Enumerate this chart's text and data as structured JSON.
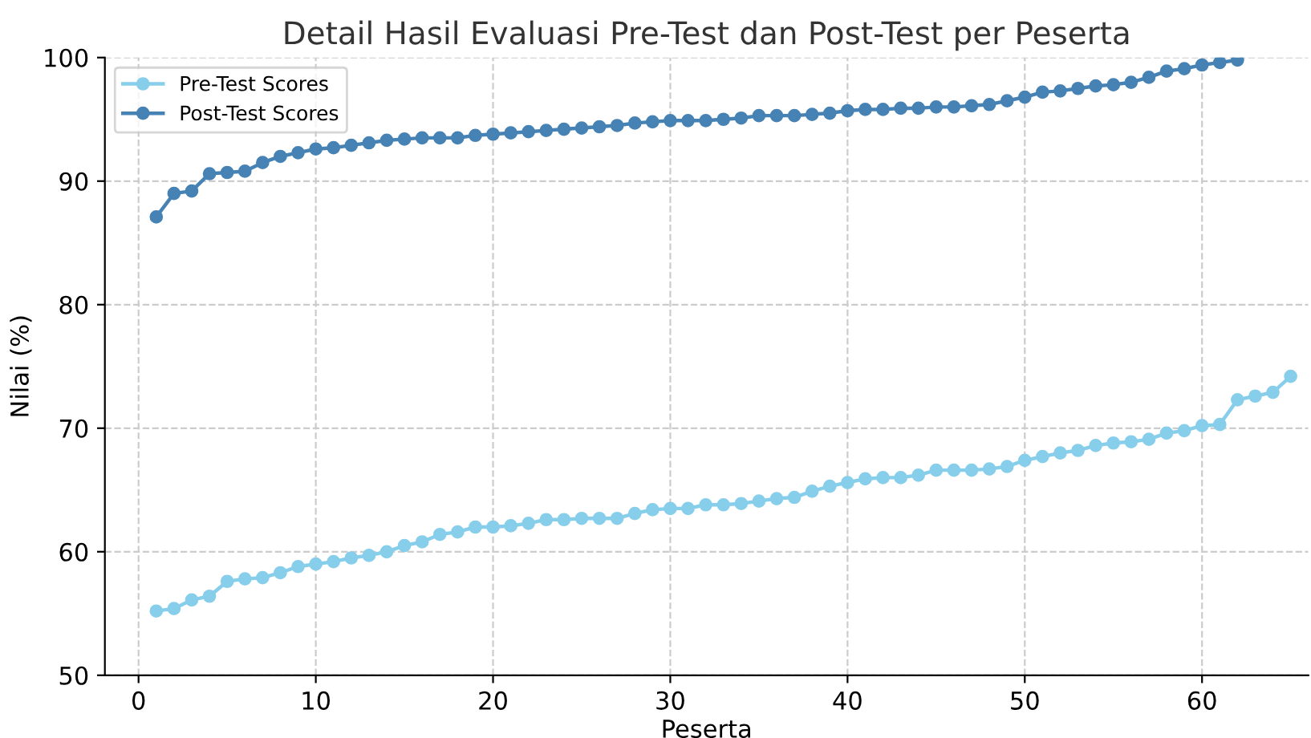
{
  "chart_data": {
    "type": "line",
    "title": "Detail Hasil Evaluasi Pre-Test dan Post-Test per Peserta",
    "xlabel": "Peserta",
    "ylabel": "Nilai (%)",
    "xlim": [
      -1.9,
      66
    ],
    "xticks": [
      0,
      10,
      20,
      30,
      40,
      50,
      60
    ],
    "ylim": [
      50,
      100
    ],
    "yticks": [
      50,
      60,
      70,
      80,
      90,
      100
    ],
    "grid": true,
    "legend": "top left",
    "marker": "circle",
    "line_style": "solid",
    "series": [
      {
        "name": "Pre-Test Scores",
        "color": "#87ceeb",
        "x": [
          1,
          2,
          3,
          4,
          5,
          6,
          7,
          8,
          9,
          10,
          11,
          12,
          13,
          14,
          15,
          16,
          17,
          18,
          19,
          20,
          21,
          22,
          23,
          24,
          25,
          26,
          27,
          28,
          29,
          30,
          31,
          32,
          33,
          34,
          35,
          36,
          37,
          38,
          39,
          40,
          41,
          42,
          43,
          44,
          45,
          46,
          47,
          48,
          49,
          50,
          51,
          52,
          53,
          54,
          55,
          56,
          57,
          58,
          59,
          60,
          61,
          62,
          63,
          64,
          65
        ],
        "values": [
          55.2,
          55.4,
          56.1,
          56.4,
          57.6,
          57.8,
          57.9,
          58.3,
          58.8,
          59.0,
          59.2,
          59.5,
          59.7,
          60.0,
          60.5,
          60.8,
          61.4,
          61.6,
          62.0,
          62.0,
          62.1,
          62.3,
          62.6,
          62.6,
          62.7,
          62.7,
          62.7,
          63.1,
          63.4,
          63.5,
          63.5,
          63.8,
          63.8,
          63.9,
          64.1,
          64.3,
          64.4,
          64.9,
          65.3,
          65.6,
          65.9,
          66.0,
          66.0,
          66.2,
          66.6,
          66.6,
          66.6,
          66.7,
          66.9,
          67.4,
          67.7,
          68.0,
          68.2,
          68.6,
          68.8,
          68.9,
          69.1,
          69.6,
          69.8,
          70.2,
          70.3,
          72.3,
          72.6,
          72.9,
          74.2
        ]
      },
      {
        "name": "Post-Test Scores",
        "color": "#4682b4",
        "x": [
          1,
          2,
          3,
          4,
          5,
          6,
          7,
          8,
          9,
          10,
          11,
          12,
          13,
          14,
          15,
          16,
          17,
          18,
          19,
          20,
          21,
          22,
          23,
          24,
          25,
          26,
          27,
          28,
          29,
          30,
          31,
          32,
          33,
          34,
          35,
          36,
          37,
          38,
          39,
          40,
          41,
          42,
          43,
          44,
          45,
          46,
          47,
          48,
          49,
          50,
          51,
          52,
          53,
          54,
          55,
          56,
          57,
          58,
          59,
          60,
          61,
          62
        ],
        "values": [
          87.1,
          89.0,
          89.2,
          90.6,
          90.7,
          90.8,
          91.5,
          92.0,
          92.3,
          92.6,
          92.7,
          92.9,
          93.1,
          93.3,
          93.4,
          93.5,
          93.5,
          93.5,
          93.7,
          93.8,
          93.9,
          94.0,
          94.1,
          94.2,
          94.3,
          94.4,
          94.5,
          94.7,
          94.8,
          94.9,
          94.9,
          94.9,
          95.0,
          95.1,
          95.3,
          95.3,
          95.3,
          95.4,
          95.5,
          95.7,
          95.8,
          95.8,
          95.9,
          95.9,
          96.0,
          96.0,
          96.1,
          96.2,
          96.5,
          96.8,
          97.2,
          97.3,
          97.5,
          97.7,
          97.8,
          98.0,
          98.4,
          98.9,
          99.1,
          99.4,
          99.6,
          99.8
        ]
      }
    ]
  }
}
